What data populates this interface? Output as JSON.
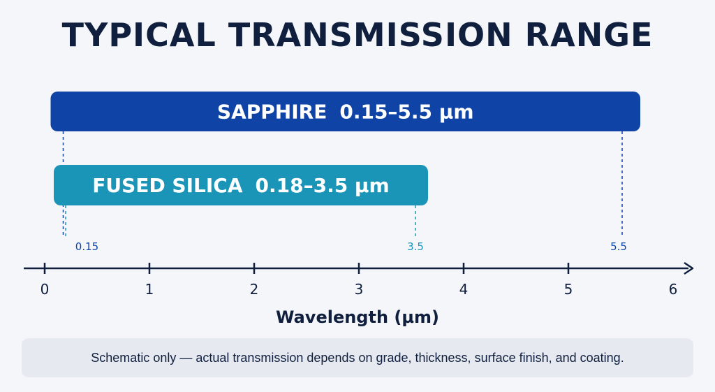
{
  "chart_data": {
    "type": "bar",
    "orientation": "horizontal-range",
    "title": "TYPICAL TRANSMISSION RANGE",
    "xlabel": "Wavelength (µm)",
    "xlim": [
      0,
      6
    ],
    "x_ticks": [
      "0",
      "1",
      "2",
      "3",
      "4",
      "5",
      "6"
    ],
    "series": [
      {
        "name": "SAPPHIRE",
        "range_label": "0.15–5.5 µm",
        "start": 0.15,
        "end": 5.5,
        "color": "#0f44a6"
      },
      {
        "name": "FUSED SILICA",
        "range_label": "0.18–3.5 µm",
        "start": 0.18,
        "end": 3.5,
        "color": "#1a95b8"
      }
    ],
    "markers": [
      {
        "label": "0.15",
        "value": 0.15,
        "color": "#0f44a6"
      },
      {
        "label": "3.5",
        "value": 3.5,
        "color": "#1a95b8"
      },
      {
        "label": "5.5",
        "value": 5.5,
        "color": "#0f44a6"
      }
    ]
  },
  "note": "Schematic only — actual transmission depends on grade, thickness, surface finish, and coating."
}
